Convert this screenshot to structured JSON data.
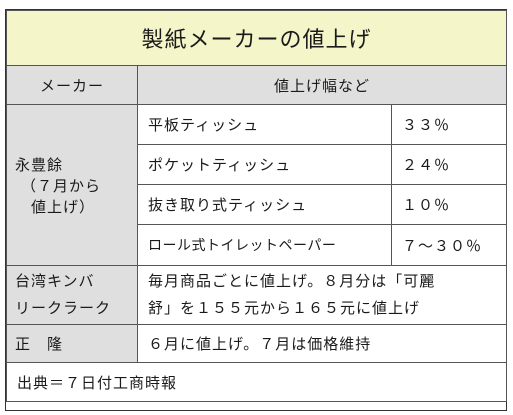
{
  "title": "製紙メーカーの値上げ",
  "header": {
    "maker": "メーカー",
    "detail": "値上げ幅など"
  },
  "company1": {
    "name": "永豊餘",
    "note": "（７月から",
    "note2": "値上げ）",
    "items": [
      {
        "product": "平板ティッシュ",
        "rate": "３３％"
      },
      {
        "product": "ポケットティッシュ",
        "rate": "２４％"
      },
      {
        "product": "抜き取り式ティッシュ",
        "rate": "１０％"
      },
      {
        "product": "ロール式トイレットペーパー",
        "rate": "７〜３０％"
      }
    ]
  },
  "company2": {
    "name1": "台湾キンバ",
    "name2": "リークラーク",
    "desc1": "毎月商品ごとに値上げ。８月分は「可麗",
    "desc2": "舒」を１５５元から１６５元に値上げ"
  },
  "company3": {
    "name": "正　隆",
    "desc": "６月に値上げ。７月は価格維持"
  },
  "source": "出典＝７日付工商時報"
}
